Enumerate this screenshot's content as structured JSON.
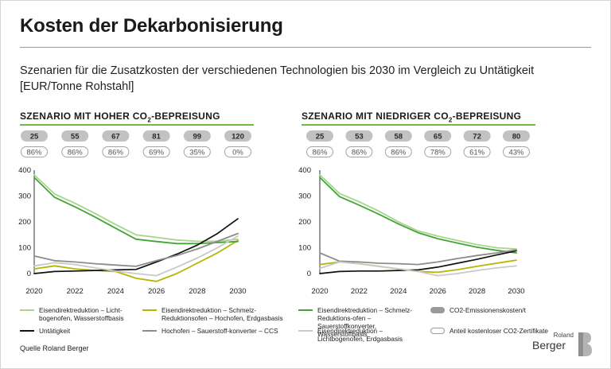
{
  "header": {
    "title": "Kosten der Dekarbonisierung",
    "subtitle": "Szenarien für die Zusatzkosten der verschiedenen Technologien bis 2030 im Vergleich zu Untätigkeit [EUR/Tonne Rohstahl]"
  },
  "colors": {
    "accent_green": "#6fba44",
    "pill_fill": "#c2c2c2",
    "series_light_green": "#a8d48e",
    "series_olive": "#b8b400",
    "series_green": "#43a535",
    "series_black": "#111111",
    "series_gray": "#8c8c8c",
    "series_light_gray": "#c9c9c9"
  },
  "panels": [
    {
      "title_prefix": "SZENARIO MIT HOHER CO",
      "title_sub": "2",
      "title_suffix": "-BEPREISUNG"
    },
    {
      "title_prefix": "SZENARIO MIT NIEDRIGER CO",
      "title_sub": "2",
      "title_suffix": "-BEPREISUNG"
    }
  ],
  "legend": {
    "items": [
      {
        "label": "Eisendirektreduktion – Licht-bogenofen, Wasserstoffbasis",
        "kind": "line",
        "color": "#a8d48e"
      },
      {
        "label": "Eisendirektreduktion – Schmelz-Reduktionsofen – Hochofen, Erdgasbasis",
        "kind": "line",
        "color": "#b8b400"
      },
      {
        "label": "Eisendirektreduktion – Schmelz-Reduktions-ofen – Sauerstoffkonverter, Wasserstoffbasis",
        "kind": "line",
        "color": "#43a535"
      },
      {
        "label": "CO2-Emissionenskosten/t",
        "kind": "pill",
        "color": "#9a9a9a"
      },
      {
        "label": "Untätigkeit",
        "kind": "line",
        "color": "#111111"
      },
      {
        "label": "Hochofen – Sauerstoff-konverter – CCS",
        "kind": "line",
        "color": "#8c8c8c"
      },
      {
        "label": "Eisendirektreduktion – Lichtbogenofen, Erdgasbasis",
        "kind": "line",
        "color": "#c9c9c9"
      },
      {
        "label": "Anteil kostenloser CO2-Zertifikate",
        "kind": "pill-outline",
        "color": "#9a9a9a"
      }
    ]
  },
  "footer": {
    "source": "Quelle Roland Berger",
    "logo_top": "Roland",
    "logo_main": "Berger"
  },
  "chart_data": [
    {
      "type": "line",
      "title": "SZENARIO MIT HOHER CO2-BEPREISUNG",
      "x": [
        2020,
        2021,
        2022,
        2023,
        2024,
        2025,
        2026,
        2027,
        2028,
        2029,
        2030
      ],
      "x_ticks": [
        2020,
        2022,
        2024,
        2026,
        2028,
        2030
      ],
      "ylim": [
        0,
        400
      ],
      "y_ticks": [
        0,
        100,
        200,
        300,
        400
      ],
      "co2_costs": [
        "25",
        "55",
        "67",
        "81",
        "99",
        "120"
      ],
      "free_certificates": [
        "86%",
        "86%",
        "86%",
        "69%",
        "35%",
        "0%"
      ],
      "series": [
        {
          "name": "Eisendirektreduktion – Licht-bogenofen, Wasserstoffbasis",
          "color": "#a8d48e",
          "values": [
            382,
            308,
            272,
            232,
            190,
            150,
            140,
            130,
            125,
            125,
            133
          ]
        },
        {
          "name": "Eisendirektreduktion – Schmelz-Reduktionsofen – Hochofen, Erdgasbasis",
          "color": "#b8b400",
          "values": [
            18,
            30,
            18,
            12,
            8,
            -18,
            -30,
            0,
            40,
            80,
            128
          ]
        },
        {
          "name": "Eisendirektreduktion – Schmelz-Reduktions-ofen – Sauerstoffkonverter, Wasserstoffbasis",
          "color": "#43a535",
          "values": [
            372,
            295,
            258,
            218,
            175,
            133,
            124,
            116,
            116,
            120,
            124
          ]
        },
        {
          "name": "Untätigkeit",
          "color": "#111111",
          "values": [
            0,
            8,
            10,
            12,
            14,
            16,
            45,
            75,
            110,
            155,
            212
          ]
        },
        {
          "name": "Hochofen – Sauerstoff-konverter – CCS",
          "color": "#8c8c8c",
          "values": [
            68,
            50,
            45,
            38,
            33,
            28,
            50,
            70,
            95,
            125,
            155
          ]
        },
        {
          "name": "Eisendirektreduktion – Lichtbogenofen, Erdgasbasis",
          "color": "#c9c9c9",
          "values": [
            30,
            42,
            35,
            22,
            10,
            0,
            -8,
            25,
            60,
            100,
            145
          ]
        }
      ]
    },
    {
      "type": "line",
      "title": "SZENARIO MIT NIEDRIGER CO2-BEPREISUNG",
      "x": [
        2020,
        2021,
        2022,
        2023,
        2024,
        2025,
        2026,
        2027,
        2028,
        2029,
        2030
      ],
      "x_ticks": [
        2020,
        2022,
        2024,
        2026,
        2028,
        2030
      ],
      "ylim": [
        0,
        400
      ],
      "y_ticks": [
        0,
        100,
        200,
        300,
        400
      ],
      "co2_costs": [
        "25",
        "53",
        "58",
        "65",
        "72",
        "80"
      ],
      "free_certificates": [
        "86%",
        "86%",
        "86%",
        "78%",
        "61%",
        "43%"
      ],
      "series": [
        {
          "name": "Eisendirektreduktion – Licht-bogenofen, Wasserstoffbasis",
          "color": "#a8d48e",
          "values": [
            382,
            310,
            278,
            242,
            200,
            165,
            145,
            128,
            112,
            100,
            95
          ]
        },
        {
          "name": "Eisendirektreduktion – Schmelz-Reduktionsofen – Hochofen, Erdgasbasis",
          "color": "#b8b400",
          "values": [
            35,
            45,
            38,
            28,
            18,
            8,
            5,
            15,
            28,
            40,
            52
          ]
        },
        {
          "name": "Eisendirektreduktion – Schmelz-Reduktions-ofen – Sauerstoffkonverter, Wasserstoffbasis",
          "color": "#43a535",
          "values": [
            372,
            298,
            265,
            230,
            192,
            158,
            135,
            118,
            102,
            90,
            80
          ]
        },
        {
          "name": "Untätigkeit",
          "color": "#111111",
          "values": [
            0,
            8,
            10,
            10,
            12,
            14,
            25,
            40,
            55,
            72,
            88
          ]
        },
        {
          "name": "Hochofen – Sauerstoff-konverter – CCS",
          "color": "#8c8c8c",
          "values": [
            80,
            48,
            45,
            40,
            38,
            35,
            45,
            58,
            70,
            80,
            92
          ]
        },
        {
          "name": "Eisendirektreduktion – Lichtbogenofen, Erdgasbasis",
          "color": "#c9c9c9",
          "values": [
            20,
            45,
            38,
            28,
            18,
            8,
            -8,
            0,
            12,
            22,
            30
          ]
        }
      ]
    }
  ]
}
